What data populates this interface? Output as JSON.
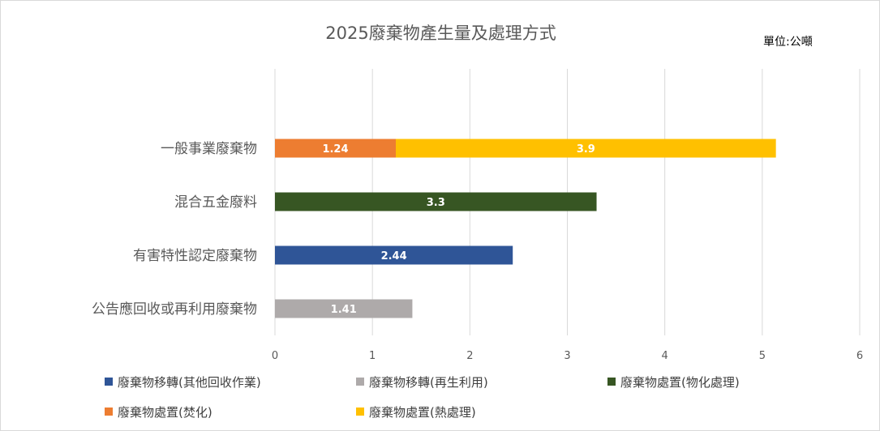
{
  "chart_data": {
    "type": "bar",
    "orientation": "horizontal",
    "stacked": true,
    "title": "2025廢棄物產生量及處理方式",
    "unit_label": "單位:公噸",
    "categories": [
      "一般事業廢棄物",
      "混合五金廢料",
      "有害特性認定廢棄物",
      "公告應回收或再利用廢棄物"
    ],
    "series": [
      {
        "name": "廢棄物移轉(其他回收作業)",
        "color": "#2f5597",
        "values": [
          0,
          0,
          2.44,
          0
        ]
      },
      {
        "name": "廢棄物移轉(再生利用)",
        "color": "#aeaaaa",
        "values": [
          0,
          0,
          0,
          1.41
        ]
      },
      {
        "name": "廢棄物處置(物化處理)",
        "color": "#375623",
        "values": [
          0,
          3.3,
          0,
          0
        ]
      },
      {
        "name": "廢棄物處置(焚化)",
        "color": "#ed7d31",
        "values": [
          1.24,
          0,
          0,
          0
        ]
      },
      {
        "name": "廢棄物處置(熱處理)",
        "color": "#ffc000",
        "values": [
          3.9,
          0,
          0,
          0
        ]
      }
    ],
    "data_labels": [
      {
        "category": 0,
        "series": 3,
        "text": "1.24"
      },
      {
        "category": 0,
        "series": 4,
        "text": "3.9"
      },
      {
        "category": 1,
        "series": 2,
        "text": "3.3"
      },
      {
        "category": 2,
        "series": 0,
        "text": "2.44"
      },
      {
        "category": 3,
        "series": 1,
        "text": "1.41"
      }
    ],
    "xlim": [
      0,
      6
    ],
    "xticks": [
      "0",
      "1",
      "2",
      "3",
      "4",
      "5",
      "6"
    ],
    "grid": true,
    "legend_position": "bottom"
  }
}
